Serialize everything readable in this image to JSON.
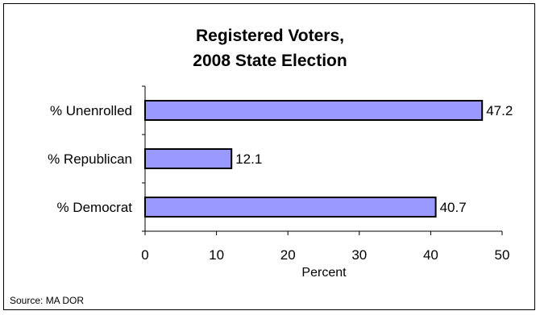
{
  "source": "Source: MA DOR",
  "colors": {
    "bar_fill": "#9999ff",
    "bar_stroke": "#000000",
    "axis": "#000000"
  },
  "chart_data": {
    "type": "bar",
    "orientation": "horizontal",
    "title": "Registered Voters,\n2008 State Election",
    "title_lines": [
      "Registered Voters,",
      "2008 State Election"
    ],
    "categories": [
      "% Unenrolled",
      "% Republican",
      "% Democrat"
    ],
    "values": [
      47.2,
      12.1,
      40.7
    ],
    "value_labels": [
      "47.2",
      "12.1",
      "40.7"
    ],
    "xlabel": "Percent",
    "ylabel": "",
    "xlim": [
      0,
      50
    ],
    "xticks": [
      0,
      10,
      20,
      30,
      40,
      50
    ],
    "grid": false,
    "legend": "none"
  }
}
